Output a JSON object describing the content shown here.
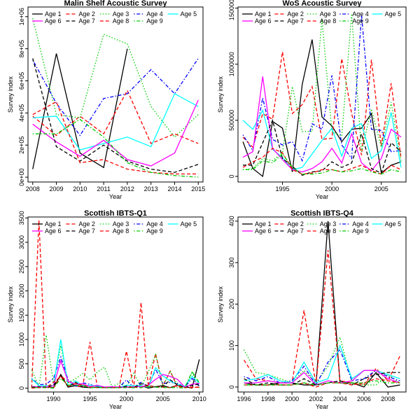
{
  "series_styles": [
    {
      "name": "Age 1",
      "color": "#000000",
      "dash": "solid"
    },
    {
      "name": "Age 2",
      "color": "#ff0000",
      "dash": "dashed"
    },
    {
      "name": "Age 3",
      "color": "#00cd00",
      "dash": "dotted"
    },
    {
      "name": "Age 4",
      "color": "#0000ff",
      "dash": "dotdash"
    },
    {
      "name": "Age 5",
      "color": "#00ffff",
      "dash": "solid"
    },
    {
      "name": "Age 6",
      "color": "#ff00ff",
      "dash": "solid"
    },
    {
      "name": "Age 7",
      "color": "#000000",
      "dash": "dashed"
    },
    {
      "name": "Age 8",
      "color": "#ff0000",
      "dash": "dashed"
    },
    {
      "name": "Age 9",
      "color": "#00cd00",
      "dash": "dotdash"
    }
  ],
  "chart_data": [
    {
      "type": "line",
      "title": "Malin Shelf Acoustic Survey",
      "xlabel": "Year",
      "ylabel": "Survey index",
      "xlim": [
        2007.8,
        2015.2
      ],
      "ylim": [
        -30000,
        1060000
      ],
      "xticks": [
        2008,
        2009,
        2010,
        2011,
        2012,
        2013,
        2014,
        2015
      ],
      "xtick_labels": [
        "2008",
        "2009",
        "2010",
        "2011",
        "2012",
        "2013",
        "2014",
        "2015"
      ],
      "yticks": [
        0,
        200000,
        400000,
        600000,
        800000,
        1000000
      ],
      "ytick_labels": [
        "0e+00",
        "2e+05",
        "4e+05",
        "6e+05",
        "8e+05",
        "1e+06"
      ],
      "legend_position": "top",
      "legend_ncol": 5,
      "x": [
        2008,
        2009,
        2010,
        2011,
        2012,
        2013,
        2014,
        2015
      ],
      "series": [
        {
          "name": "Age 1",
          "values": [
            50000,
            770000,
            150000,
            60000,
            800000,
            null,
            null,
            null
          ]
        },
        {
          "name": "Age 2",
          "values": [
            380000,
            260000,
            380000,
            270000,
            540000,
            210000,
            270000,
            210000
          ]
        },
        {
          "name": "Age 3",
          "values": [
            990000,
            390000,
            370000,
            890000,
            830000,
            440000,
            250000,
            390000
          ]
        },
        {
          "name": "Age 4",
          "values": [
            730000,
            460000,
            260000,
            490000,
            520000,
            670000,
            520000,
            740000
          ]
        },
        {
          "name": "Age 5",
          "values": [
            370000,
            380000,
            170000,
            210000,
            250000,
            190000,
            520000,
            440000
          ]
        },
        {
          "name": "Age 6",
          "values": [
            330000,
            220000,
            130000,
            230000,
            110000,
            70000,
            150000,
            480000
          ]
        },
        {
          "name": "Age 7",
          "values": [
            740000,
            190000,
            100000,
            200000,
            100000,
            50000,
            30000,
            80000
          ]
        },
        {
          "name": "Age 8",
          "values": [
            390000,
            470000,
            90000,
            110000,
            50000,
            30000,
            20000,
            20000
          ]
        },
        {
          "name": "Age 9",
          "values": [
            270000,
            270000,
            360000,
            250000,
            90000,
            30000,
            10000,
            0
          ]
        }
      ]
    },
    {
      "type": "line",
      "title": "WoS Acoustic Survey",
      "xlabel": "Year",
      "ylabel": "Survey index",
      "xlim": [
        1990.5,
        2007.5
      ],
      "ylim": [
        -50000,
        1510000
      ],
      "xticks": [
        1995,
        2000,
        2005
      ],
      "xtick_labels": [
        "1995",
        "2000",
        "2005"
      ],
      "yticks": [
        0,
        500000,
        1000000,
        1500000
      ],
      "ytick_labels": [
        "0",
        "500000",
        "1000000",
        "1500000"
      ],
      "legend_position": "top",
      "legend_ncol": 5,
      "x": [
        1991,
        1992,
        1993,
        1994,
        1995,
        1996,
        1997,
        1998,
        1999,
        2000,
        2001,
        2002,
        2003,
        2004,
        2005,
        2006,
        2007
      ],
      "series": [
        {
          "name": "Age 1",
          "values": [
            310000,
            70000,
            0,
            490000,
            430000,
            40000,
            820000,
            1220000,
            530000,
            450000,
            310000,
            420000,
            430000,
            560000,
            30000,
            100000,
            130000
          ]
        },
        {
          "name": "Age 2",
          "values": [
            350000,
            260000,
            560000,
            510000,
            1110000,
            560000,
            640000,
            800000,
            330000,
            340000,
            1050000,
            560000,
            190000,
            1040000,
            270000,
            830000,
            160000
          ]
        },
        {
          "name": "Age 3",
          "values": [
            60000,
            70000,
            160000,
            140000,
            210000,
            800000,
            400000,
            400000,
            1400000,
            400000,
            360000,
            1450000,
            220000,
            600000,
            260000,
            660000,
            140000
          ]
        },
        {
          "name": "Age 4",
          "values": [
            370000,
            230000,
            700000,
            330000,
            280000,
            310000,
            140000,
            470000,
            420000,
            900000,
            280000,
            160000,
            1440000,
            420000,
            410000,
            220000,
            230000
          ]
        },
        {
          "name": "Age 5",
          "values": [
            500000,
            420000,
            590000,
            240000,
            170000,
            60000,
            80000,
            200000,
            320000,
            430000,
            180000,
            430000,
            470000,
            160000,
            230000,
            570000,
            80000
          ]
        },
        {
          "name": "Age 6",
          "values": [
            170000,
            220000,
            890000,
            250000,
            150000,
            60000,
            40000,
            70000,
            130000,
            250000,
            120000,
            380000,
            120000,
            50000,
            160000,
            420000,
            350000
          ]
        },
        {
          "name": "Age 7",
          "values": [
            100000,
            100000,
            300000,
            500000,
            160000,
            90000,
            10000,
            40000,
            50000,
            130000,
            80000,
            120000,
            380000,
            70000,
            30000,
            300000,
            220000
          ]
        },
        {
          "name": "Age 8",
          "values": [
            80000,
            130000,
            170000,
            250000,
            210000,
            60000,
            20000,
            30000,
            60000,
            60000,
            40000,
            70000,
            100000,
            50000,
            20000,
            100000,
            60000
          ]
        },
        {
          "name": "Age 9",
          "values": [
            60000,
            60000,
            140000,
            120000,
            200000,
            80000,
            20000,
            20000,
            30000,
            60000,
            40000,
            50000,
            70000,
            40000,
            20000,
            60000,
            40000
          ]
        }
      ]
    },
    {
      "type": "line",
      "title": "Scottish IBTS-Q1",
      "xlabel": "Year",
      "ylabel": "Survey index",
      "xlim": [
        1986.5,
        2010.5
      ],
      "ylim": [
        -80000,
        3520000
      ],
      "y_scale_divisor": 1000,
      "xticks": [
        1990,
        1995,
        2000,
        2005,
        2010
      ],
      "xtick_labels": [
        "1990",
        "1995",
        "2000",
        "2005",
        "2010"
      ],
      "yticks": [
        0,
        500000,
        1000000,
        1500000,
        2000000,
        2500000,
        3000000,
        3500000
      ],
      "ytick_labels": [
        "0",
        "500",
        "1000",
        "1500",
        "2000",
        "2500",
        "3000",
        "3500"
      ],
      "legend_position": "top",
      "legend_ncol": 5,
      "x": [
        1987,
        1988,
        1989,
        1990,
        1991,
        1992,
        1993,
        1994,
        1995,
        1996,
        1997,
        1998,
        1999,
        2000,
        2001,
        2002,
        2003,
        2004,
        2005,
        2006,
        2007,
        2008,
        2009,
        2010
      ],
      "series": [
        {
          "name": "Age 1",
          "values": [
            20000,
            30000,
            20000,
            10000,
            280000,
            20000,
            50000,
            20000,
            10000,
            20000,
            10000,
            10000,
            20000,
            20000,
            10000,
            50000,
            0,
            30000,
            50000,
            10000,
            60000,
            30000,
            0,
            590000
          ]
        },
        {
          "name": "Age 2",
          "values": [
            0,
            3450000,
            30000,
            0,
            260000,
            120000,
            50000,
            30000,
            950000,
            30000,
            20000,
            10000,
            20000,
            760000,
            10000,
            1760000,
            30000,
            710000,
            50000,
            350000,
            20000,
            30000,
            20000,
            20000
          ]
        },
        {
          "name": "Age 3",
          "values": [
            380000,
            20000,
            1090000,
            100000,
            870000,
            110000,
            190000,
            300000,
            170000,
            330000,
            430000,
            30000,
            100000,
            30000,
            310000,
            30000,
            330000,
            690000,
            40000,
            350000,
            60000,
            20000,
            320000,
            0
          ]
        },
        {
          "name": "Age 4",
          "values": [
            200000,
            70000,
            80000,
            200000,
            640000,
            170000,
            30000,
            110000,
            80000,
            10000,
            20000,
            20000,
            20000,
            170000,
            10000,
            120000,
            20000,
            390000,
            90000,
            120000,
            100000,
            20000,
            200000,
            40000
          ]
        },
        {
          "name": "Age 5",
          "values": [
            190000,
            50000,
            50000,
            50000,
            1000000,
            40000,
            150000,
            50000,
            60000,
            40000,
            20000,
            30000,
            10000,
            60000,
            50000,
            50000,
            20000,
            420000,
            250000,
            150000,
            70000,
            40000,
            240000,
            100000
          ]
        },
        {
          "name": "Age 6",
          "values": [
            30000,
            30000,
            20000,
            50000,
            560000,
            140000,
            80000,
            90000,
            30000,
            60000,
            20000,
            30000,
            20000,
            20000,
            30000,
            30000,
            60000,
            180000,
            280000,
            240000,
            180000,
            20000,
            80000,
            100000
          ]
        },
        {
          "name": "Age 7",
          "values": [
            20000,
            20000,
            20000,
            60000,
            260000,
            20000,
            120000,
            30000,
            10000,
            20000,
            10000,
            10000,
            10000,
            40000,
            10000,
            90000,
            50000,
            30000,
            30000,
            170000,
            70000,
            10000,
            60000,
            80000
          ]
        },
        {
          "name": "Age 8",
          "values": [
            0,
            10000,
            10000,
            120000,
            240000,
            40000,
            90000,
            60000,
            20000,
            10000,
            10000,
            10000,
            10000,
            10000,
            20000,
            10000,
            50000,
            20000,
            20000,
            10000,
            50000,
            10000,
            10000,
            20000
          ]
        },
        {
          "name": "Age 9",
          "values": [
            10000,
            10000,
            10000,
            0,
            200000,
            60000,
            60000,
            50000,
            10000,
            10000,
            10000,
            10000,
            10000,
            10000,
            10000,
            10000,
            30000,
            20000,
            10000,
            10000,
            10000,
            0,
            340000,
            110000
          ]
        }
      ]
    },
    {
      "type": "line",
      "title": "Scottish IBTS-Q4",
      "xlabel": "Year",
      "ylabel": "Survey index",
      "xlim": [
        1995.5,
        2009.5
      ],
      "ylim": [
        -12,
        410
      ],
      "xticks": [
        1996,
        1998,
        2000,
        2002,
        2004,
        2006,
        2008
      ],
      "xtick_labels": [
        "1996",
        "1998",
        "2000",
        "2002",
        "2004",
        "2006",
        "2008"
      ],
      "yticks": [
        0,
        100,
        200,
        300,
        400
      ],
      "ytick_labels": [
        "0",
        "100",
        "200",
        "300",
        "400"
      ],
      "legend_position": "top",
      "legend_ncol": 5,
      "x": [
        1996,
        1997,
        1998,
        1999,
        2000,
        2001,
        2002,
        2003,
        2004,
        2005,
        2006,
        2007,
        2008,
        2009
      ],
      "series": [
        {
          "name": "Age 1",
          "values": [
            10,
            5,
            5,
            10,
            10,
            5,
            5,
            400,
            10,
            10,
            0,
            35,
            0,
            5
          ]
        },
        {
          "name": "Age 2",
          "values": [
            65,
            20,
            15,
            10,
            10,
            185,
            5,
            330,
            15,
            10,
            5,
            45,
            15,
            75
          ]
        },
        {
          "name": "Age 3",
          "values": [
            90,
            35,
            30,
            20,
            10,
            40,
            10,
            50,
            120,
            10,
            5,
            5,
            30,
            10
          ]
        },
        {
          "name": "Age 4",
          "values": [
            25,
            15,
            25,
            10,
            15,
            50,
            5,
            60,
            90,
            15,
            20,
            40,
            25,
            15
          ]
        },
        {
          "name": "Age 5",
          "values": [
            15,
            20,
            30,
            15,
            10,
            60,
            10,
            20,
            100,
            20,
            40,
            40,
            30,
            20
          ]
        },
        {
          "name": "Age 6",
          "values": [
            10,
            10,
            15,
            10,
            10,
            35,
            5,
            15,
            10,
            15,
            40,
            40,
            20,
            10
          ]
        },
        {
          "name": "Age 7",
          "values": [
            20,
            5,
            10,
            5,
            5,
            20,
            5,
            10,
            15,
            5,
            20,
            30,
            35,
            35
          ]
        },
        {
          "name": "Age 8",
          "values": [
            5,
            5,
            5,
            5,
            5,
            10,
            0,
            10,
            10,
            5,
            10,
            20,
            15,
            10
          ]
        },
        {
          "name": "Age 9",
          "values": [
            5,
            5,
            5,
            5,
            5,
            10,
            5,
            10,
            10,
            10,
            10,
            15,
            10,
            10
          ]
        }
      ]
    }
  ]
}
